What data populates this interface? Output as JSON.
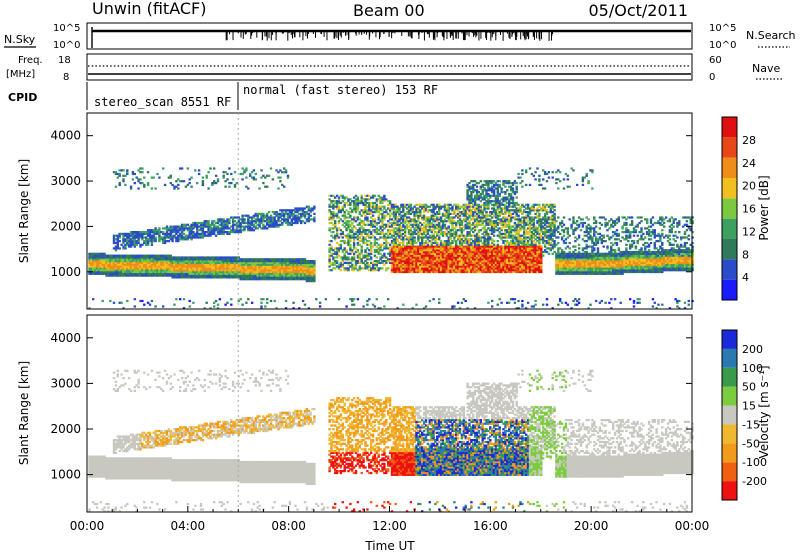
{
  "header": {
    "station": "Unwin (fitACF)",
    "beam": "Beam 00",
    "date": "05/Oct/2011"
  },
  "nsky_panel": {
    "left_label": "N.Sky",
    "right_label": "N.Search",
    "tick_top": "10^5",
    "tick_bottom": "10^0"
  },
  "freq_panel": {
    "left_label_1": "Freq.",
    "left_label_2": "[MHz]",
    "right_label": "Nave",
    "left_ticks": [
      "18",
      "8"
    ],
    "right_ticks": [
      "60",
      "0"
    ]
  },
  "cpid_panel": {
    "label": "CPID",
    "segments": [
      {
        "text": "stereo_scan 8551 RF",
        "start_hour": 0
      },
      {
        "text": "normal (fast stereo) 153 RF",
        "start_hour": 6
      }
    ]
  },
  "x_axis": {
    "label": "Time UT",
    "ticks": [
      "00:00",
      "04:00",
      "08:00",
      "12:00",
      "16:00",
      "20:00",
      "00:00"
    ],
    "range_hours": [
      0,
      24
    ]
  },
  "colors": {
    "power": [
      "#1a1aff",
      "#2a4cc8",
      "#2f7a5a",
      "#3ca060",
      "#7cc840",
      "#f0c020",
      "#f08c18",
      "#e84818",
      "#e01010"
    ],
    "velocity": [
      "#ee1111",
      "#f06010",
      "#f29a1a",
      "#f0b830",
      "#c8c8c0",
      "#7ccc40",
      "#3a9a4a",
      "#2a7ab0",
      "#1a2ad8"
    ]
  },
  "chart_data": [
    {
      "type": "heatmap",
      "title": "Power",
      "ylabel": "Slant Range [km]",
      "xlabel": "Time UT",
      "ylim": [
        180,
        4500
      ],
      "y_ticks": [
        1000,
        2000,
        3000,
        4000
      ],
      "xlim_hours": [
        0,
        24
      ],
      "colorbar": {
        "label": "Power [dB]",
        "range": [
          0,
          32
        ],
        "ticks": [
          "4",
          "8",
          "12",
          "16",
          "20",
          "24",
          "28"
        ]
      }
    },
    {
      "type": "heatmap",
      "title": "Velocity",
      "ylabel": "Slant Range [km]",
      "xlabel": "Time UT",
      "ylim": [
        180,
        4500
      ],
      "y_ticks": [
        1000,
        2000,
        3000,
        4000
      ],
      "xlim_hours": [
        0,
        24
      ],
      "colorbar": {
        "label": "Velocity [m s⁻¹]",
        "range": [
          -250,
          250
        ],
        "ticks": [
          "-200",
          "-100",
          "-50",
          "-15",
          "15",
          "50",
          "100",
          "200"
        ]
      }
    }
  ]
}
